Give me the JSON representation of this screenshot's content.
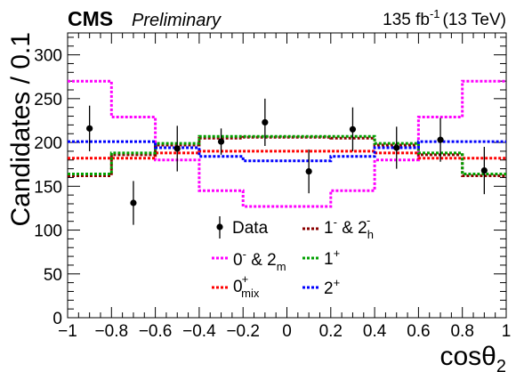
{
  "header": {
    "experiment": "CMS",
    "status": "Preliminary",
    "luminosity": "135 fb",
    "luminosity_exp": "-1",
    "energy": "(13 TeV)"
  },
  "chart_data": {
    "type": "step-histogram",
    "xlabel_base": "cosθ",
    "xlabel_sub": "2",
    "ylabel": "Candidates / 0.1",
    "xlim": [
      -1,
      1
    ],
    "ylim": [
      0,
      325
    ],
    "x_ticks": [
      -1,
      -0.8,
      -0.6,
      -0.4,
      -0.2,
      0,
      0.2,
      0.4,
      0.6,
      0.8,
      1
    ],
    "x_tick_labels": [
      "−1",
      "−0.8",
      "−0.6",
      "−0.4",
      "−0.2",
      "0",
      "0.2",
      "0.4",
      "0.6",
      "0.8",
      "1"
    ],
    "y_ticks": [
      0,
      50,
      100,
      150,
      200,
      250,
      300
    ],
    "y_tick_labels": [
      "0",
      "50",
      "100",
      "150",
      "200",
      "250",
      "300"
    ],
    "bin_edges": [
      -1,
      -0.8,
      -0.6,
      -0.4,
      -0.2,
      0,
      0.2,
      0.4,
      0.6,
      0.8,
      1
    ],
    "data": {
      "x": [
        -0.9,
        -0.7,
        -0.5,
        -0.3,
        -0.1,
        0.1,
        0.3,
        0.5,
        0.7,
        0.9
      ],
      "y": [
        216,
        131,
        193,
        201,
        223,
        167,
        215,
        194,
        203,
        168
      ],
      "err": [
        26,
        25,
        26,
        15,
        27,
        25,
        25,
        24,
        25,
        27
      ]
    },
    "series": [
      {
        "key": "m0",
        "color": "#ff00ff",
        "values": [
          270,
          229,
          180,
          145,
          127,
          127,
          145,
          180,
          229,
          270
        ]
      },
      {
        "key": "mix",
        "color": "#ff0000",
        "values": [
          182,
          182,
          188,
          190,
          190,
          190,
          190,
          188,
          182,
          182
        ]
      },
      {
        "key": "one",
        "color": "#8b0000",
        "values": [
          162,
          186,
          197,
          205,
          206,
          206,
          205,
          197,
          186,
          162
        ]
      },
      {
        "key": "oneplus",
        "color": "#00a000",
        "values": [
          164,
          188,
          199,
          207,
          207,
          207,
          207,
          199,
          188,
          164
        ]
      },
      {
        "key": "two",
        "color": "#0000ff",
        "values": [
          201,
          201,
          194,
          184,
          179,
          179,
          184,
          194,
          201,
          201
        ]
      }
    ],
    "legend": {
      "placement": "bottom-center",
      "data_label": "Data",
      "m0_main": "0",
      "m0_sup": "-",
      "m0_and": " & 2",
      "m0_sub": "m",
      "mix_main": "0",
      "mix_sup": "+",
      "mix_sub": "mix",
      "one_main": "1",
      "one_sup": "-",
      "one_and": " & 2",
      "one_sub": "h",
      "one2_sup": "-",
      "oneplus_main": "1",
      "oneplus_sup": "+",
      "two_main": "2",
      "two_sup": "+"
    }
  }
}
